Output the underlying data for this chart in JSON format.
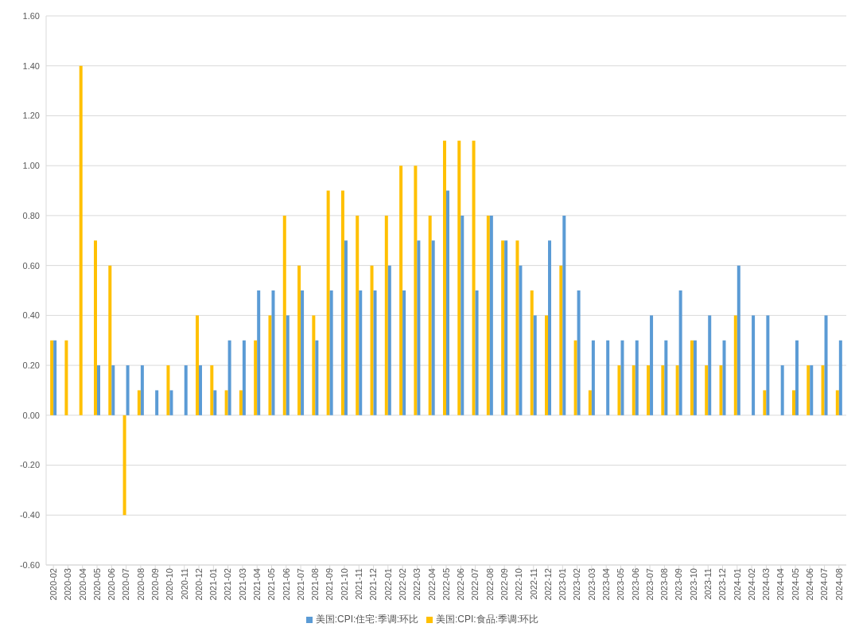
{
  "chart_data": {
    "type": "bar",
    "categories": [
      "2020-02",
      "2020-03",
      "2020-04",
      "2020-05",
      "2020-06",
      "2020-07",
      "2020-08",
      "2020-09",
      "2020-10",
      "2020-11",
      "2020-12",
      "2021-01",
      "2021-02",
      "2021-03",
      "2021-04",
      "2021-05",
      "2021-06",
      "2021-07",
      "2021-08",
      "2021-09",
      "2021-10",
      "2021-11",
      "2021-12",
      "2022-01",
      "2022-02",
      "2022-03",
      "2022-04",
      "2022-05",
      "2022-06",
      "2022-07",
      "2022-08",
      "2022-09",
      "2022-10",
      "2022-11",
      "2022-12",
      "2023-01",
      "2023-02",
      "2023-03",
      "2023-04",
      "2023-05",
      "2023-06",
      "2023-07",
      "2023-08",
      "2023-09",
      "2023-10",
      "2023-11",
      "2023-12",
      "2024-01",
      "2024-02",
      "2024-03",
      "2024-04",
      "2024-05",
      "2024-06",
      "2024-07",
      "2024-08"
    ],
    "series": [
      {
        "name": "美国:CPI:食品:季调:环比",
        "color": "#ffc000",
        "values": [
          0.3,
          0.3,
          1.4,
          0.7,
          0.6,
          -0.4,
          0.1,
          0,
          0.2,
          0,
          0.4,
          0.2,
          0.1,
          0.1,
          0.3,
          0.4,
          0.8,
          0.6,
          0.4,
          0.9,
          0.9,
          0.8,
          0.6,
          0.8,
          1.0,
          1.0,
          0.8,
          1.1,
          1.1,
          1.1,
          0.8,
          0.7,
          0.7,
          0.5,
          0.4,
          0.6,
          0.3,
          0.1,
          0,
          0.2,
          0.2,
          0.2,
          0.2,
          0.2,
          0.3,
          0.2,
          0.2,
          0.4,
          0,
          0.1,
          0,
          0.1,
          0.2,
          0.2,
          0.1
        ]
      },
      {
        "name": "美国:CPI:住宅:季调:环比",
        "color": "#5b9bd5",
        "values": [
          0.3,
          0,
          0,
          0.2,
          0.2,
          0.2,
          0.2,
          0.1,
          0.1,
          0.2,
          0.2,
          0.1,
          0.3,
          0.3,
          0.5,
          0.5,
          0.4,
          0.5,
          0.3,
          0.5,
          0.7,
          0.5,
          0.5,
          0.6,
          0.5,
          0.7,
          0.7,
          0.9,
          0.8,
          0.5,
          0.8,
          0.7,
          0.6,
          0.4,
          0.7,
          0.8,
          0.5,
          0.3,
          0.3,
          0.3,
          0.3,
          0.4,
          0.3,
          0.5,
          0.3,
          0.4,
          0.3,
          0.6,
          0.4,
          0.4,
          0.2,
          0.3,
          0.2,
          0.4,
          0.3
        ]
      }
    ],
    "ylim": [
      -0.6,
      1.6
    ],
    "yticks": [
      {
        "value": -0.6,
        "label": "-0.60"
      },
      {
        "value": -0.4,
        "label": "-0.40"
      },
      {
        "value": -0.2,
        "label": "-0.20"
      },
      {
        "value": 0,
        "label": "0.00"
      },
      {
        "value": 0.2,
        "label": "0.20"
      },
      {
        "value": 0.4,
        "label": "0.40"
      },
      {
        "value": 0.6,
        "label": "0.60"
      },
      {
        "value": 0.8,
        "label": "0.80"
      },
      {
        "value": 1.0,
        "label": "1.00"
      },
      {
        "value": 1.2,
        "label": "1.20"
      },
      {
        "value": 1.4,
        "label": "1.40"
      },
      {
        "value": 1.6,
        "label": "1.60"
      }
    ],
    "grid": "y",
    "legend": "bottom"
  }
}
